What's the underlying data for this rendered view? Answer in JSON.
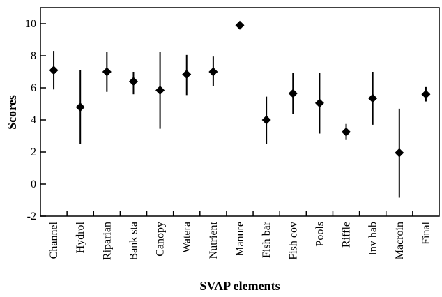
{
  "chart_data": {
    "type": "scatter",
    "xlabel": "SVAP elements",
    "ylabel": "Scores",
    "ylim": [
      -2,
      11
    ],
    "yticks": [
      -2,
      0,
      2,
      4,
      6,
      8,
      10
    ],
    "grid": false,
    "marker": "diamond",
    "error_bars": true,
    "categories": [
      "Channel",
      "Hydrol",
      "Riparian",
      "Bank sta",
      "Canopy",
      "Watera",
      "Nutrient",
      "Manure",
      "Fish bar",
      "Fish cov",
      "Pools",
      "Riffle",
      "Inv hab",
      "Macroin",
      "Final"
    ],
    "values": [
      7.1,
      4.8,
      7.0,
      6.4,
      5.85,
      6.85,
      7.0,
      9.9,
      4.0,
      5.65,
      5.05,
      3.25,
      5.35,
      1.95,
      5.6
    ],
    "low": [
      5.9,
      2.5,
      5.75,
      5.6,
      3.45,
      5.55,
      6.1,
      9.9,
      2.5,
      4.35,
      3.15,
      2.75,
      3.7,
      -0.85,
      5.15
    ],
    "high": [
      8.3,
      7.1,
      8.25,
      7.0,
      8.25,
      8.05,
      7.95,
      9.9,
      5.45,
      6.95,
      6.95,
      3.75,
      7.0,
      4.7,
      6.05
    ]
  }
}
